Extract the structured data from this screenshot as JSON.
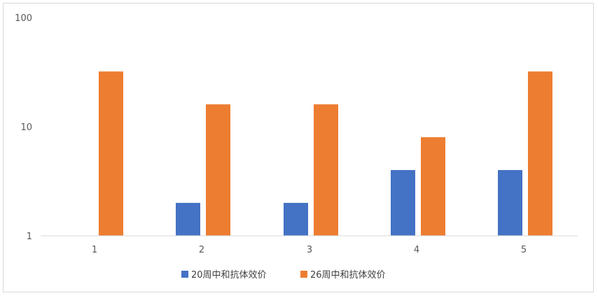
{
  "chart_data": {
    "type": "bar",
    "y_scale": "log",
    "ylim": [
      1,
      100
    ],
    "y_ticks": [
      "1",
      "10",
      "100"
    ],
    "categories": [
      "1",
      "2",
      "3",
      "4",
      "5"
    ],
    "series": [
      {
        "name": "20周中和抗体效价",
        "color": "#4472c4",
        "values": [
          null,
          2,
          2,
          4,
          4
        ]
      },
      {
        "name": "26周中和抗体效价",
        "color": "#ed7d31",
        "values": [
          32,
          16,
          16,
          8,
          32
        ]
      }
    ],
    "legend_position": "bottom",
    "grid": false
  }
}
